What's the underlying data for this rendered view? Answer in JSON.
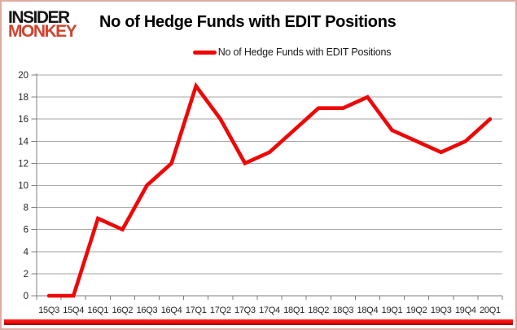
{
  "header": {
    "logo_line1": "INSIDER",
    "logo_line2": "MONKEY",
    "title": "No of Hedge Funds with EDIT Positions"
  },
  "legend": {
    "label": "No of Hedge Funds with EDIT Positions"
  },
  "chart_data": {
    "type": "line",
    "title": "No of Hedge Funds with EDIT Positions",
    "categories": [
      "15Q3",
      "15Q4",
      "16Q1",
      "16Q2",
      "16Q3",
      "16Q4",
      "17Q1",
      "17Q2",
      "17Q3",
      "17Q4",
      "18Q1",
      "18Q2",
      "18Q3",
      "18Q4",
      "19Q1",
      "19Q2",
      "19Q3",
      "19Q4",
      "20Q1"
    ],
    "series": [
      {
        "name": "No of Hedge Funds with EDIT Positions",
        "values": [
          0,
          0,
          7,
          6,
          10,
          12,
          19,
          16,
          12,
          13,
          15,
          17,
          17,
          18,
          15,
          14,
          13,
          14,
          16
        ]
      }
    ],
    "xlabel": "",
    "ylabel": "",
    "ylim": [
      0,
      20
    ],
    "ytick_step": 2,
    "grid": true,
    "legend_position": "top-center"
  },
  "colors": {
    "series_red": "#ee0707",
    "logo_red": "#d0432e",
    "gridline": "#a6a6a6",
    "axis": "#7f7f7f",
    "tick_text": "#262626",
    "frame_border": "#e0aaa2",
    "bottom_bar": "#ee0c0c"
  }
}
